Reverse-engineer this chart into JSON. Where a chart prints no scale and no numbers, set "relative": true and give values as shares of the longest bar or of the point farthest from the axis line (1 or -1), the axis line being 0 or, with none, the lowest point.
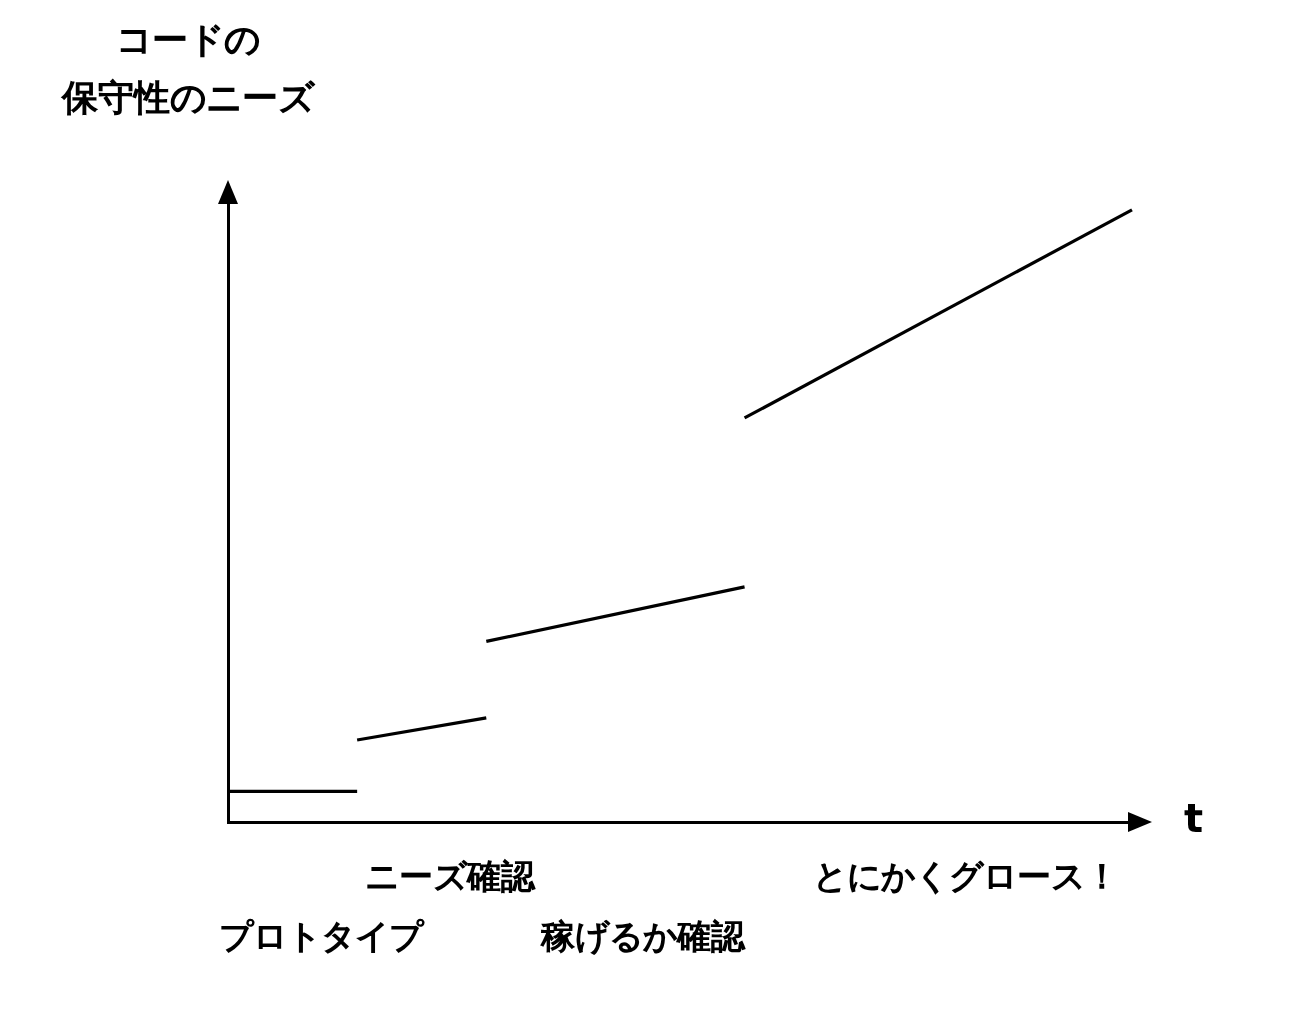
{
  "chart_data": {
    "type": "line",
    "relative": true,
    "xlabel": "t",
    "ylabel": "コードの保守性のニーズ",
    "categories": [
      null,
      null,
      null,
      null,
      null,
      null,
      null,
      null
    ],
    "series": [
      {
        "color": "#000000",
        "values": [
          0.05,
          0.05,
          null,
          null,
          null,
          null,
          null,
          null
        ]
      },
      {
        "color": "#000000",
        "values": [
          null,
          0.134,
          0.17,
          null,
          null,
          null,
          null,
          null
        ]
      },
      {
        "color": "#000000",
        "values": [
          null,
          null,
          0.295,
          null,
          0.384,
          null,
          null,
          null
        ]
      },
      {
        "color": "#000000",
        "values": [
          null,
          null,
          null,
          null,
          0.66,
          null,
          null,
          1
        ]
      }
    ],
    "annotations": [
      "プロトタイプ",
      "ニーズ確認",
      "稼げるか確認",
      "とにかくグロース！"
    ]
  }
}
